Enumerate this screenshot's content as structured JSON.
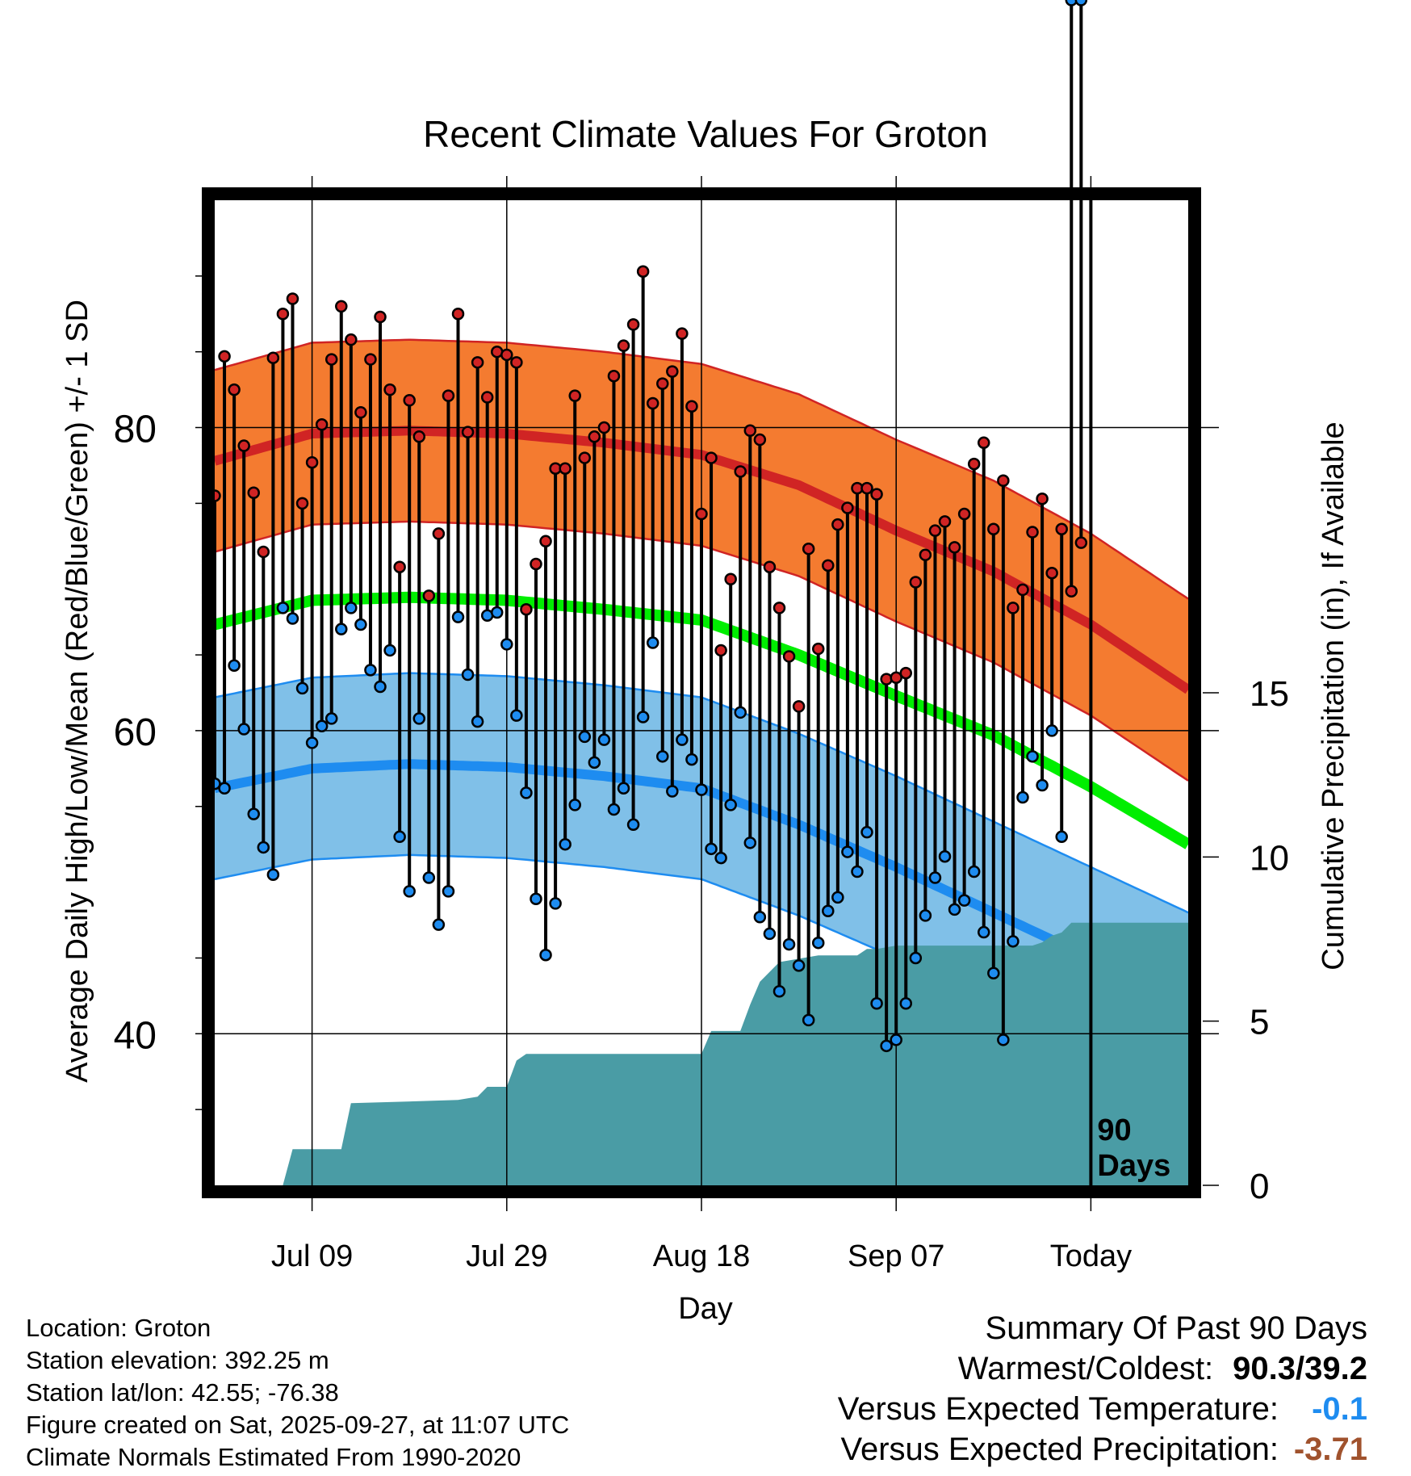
{
  "chart_data": {
    "type": "line",
    "title": "Recent Climate Values For Groton",
    "xlabel": "Day",
    "ylabel": "Average Daily High/Low/Mean (Red/Blue/Green) +/- 1 SD",
    "y2label": "Cumulative Precipitation (in), If Available",
    "x_tick_labels": [
      "Jul 09",
      "Jul 29",
      "Aug 18",
      "Sep 07",
      "Today"
    ],
    "x_tick_days": [
      10,
      30,
      50,
      70,
      90
    ],
    "xlim": [
      0,
      100
    ],
    "ylim": [
      30,
      95
    ],
    "y_ticks": [
      40,
      60,
      80
    ],
    "y2lim": [
      0,
      30
    ],
    "y2_ticks": [
      0,
      5,
      10,
      15
    ],
    "today_marker": "90\nDays",
    "normals": {
      "days": [
        0,
        10,
        20,
        30,
        40,
        50,
        60,
        70,
        80,
        90,
        100
      ],
      "high": [
        77.8,
        79.6,
        79.8,
        79.6,
        79.0,
        78.2,
        76.2,
        73.2,
        70.5,
        67.0,
        62.7
      ],
      "high_sd": 6,
      "mean": [
        67.0,
        68.6,
        68.8,
        68.6,
        68.0,
        67.3,
        65.0,
        62.3,
        59.7,
        56.3,
        52.5
      ],
      "low": [
        56.2,
        57.5,
        57.8,
        57.6,
        57.0,
        56.2,
        53.8,
        51.0,
        48.0,
        45.0,
        42.0
      ],
      "low_sd": 6
    },
    "daily_highs": [
      75.5,
      84.7,
      82.5,
      78.8,
      75.7,
      71.8,
      84.6,
      87.5,
      88.5,
      75.0,
      77.7,
      80.2,
      84.5,
      88.0,
      85.8,
      81.0,
      84.5,
      87.3,
      82.5,
      70.8,
      81.8,
      79.4,
      68.9,
      73.0,
      82.1,
      87.5,
      79.7,
      84.3,
      82.0,
      85.0,
      84.8,
      84.3,
      68.0,
      71.0,
      72.5,
      77.3,
      77.3,
      82.1,
      78.0,
      79.4,
      80.0,
      83.4,
      85.4,
      86.8,
      90.3,
      81.6,
      82.9,
      83.7,
      86.2,
      81.4,
      74.3,
      78.0,
      65.3,
      70.0,
      77.1,
      79.8,
      79.2,
      70.8,
      68.1,
      64.9,
      61.6,
      72.0,
      65.4,
      70.9,
      73.6,
      74.7,
      76.0,
      76.0,
      75.6,
      63.4,
      63.5,
      63.8,
      69.8,
      71.6,
      73.2,
      73.8,
      72.1,
      74.3,
      77.6,
      79.0,
      73.3,
      76.5,
      68.1,
      69.3,
      73.1,
      75.3,
      70.4,
      73.3,
      69.2,
      72.4
    ],
    "daily_lows": [
      56.5,
      56.2,
      64.3,
      60.1,
      54.5,
      52.3,
      50.5,
      68.1,
      67.4,
      62.8,
      59.2,
      60.3,
      60.8,
      66.7,
      68.1,
      67.0,
      64.0,
      62.9,
      65.3,
      53.0,
      49.4,
      60.8,
      50.3,
      47.2,
      49.4,
      67.5,
      63.7,
      60.6,
      67.6,
      67.8,
      65.7,
      61.0,
      55.9,
      48.9,
      45.2,
      48.6,
      52.5,
      55.1,
      59.6,
      57.9,
      59.4,
      54.8,
      56.2,
      53.8,
      60.9,
      65.8,
      58.3,
      56.0,
      59.4,
      58.1,
      56.1,
      52.2,
      51.6,
      55.1,
      61.2,
      52.6,
      47.7,
      46.6,
      42.8,
      45.9,
      44.5,
      40.9,
      46.0,
      48.1,
      49.0,
      52.0,
      50.7,
      53.3,
      42.0,
      39.2,
      39.6,
      42.0,
      45.0,
      47.8,
      50.3,
      51.7,
      48.2,
      48.8,
      50.7,
      46.7,
      44.0,
      39.6,
      46.1,
      55.6,
      58.3,
      56.4,
      60.0,
      53.0
    ],
    "cumulative_precip": {
      "days": [
        0,
        7,
        8,
        13,
        14,
        25,
        27,
        28,
        30,
        31,
        32,
        50,
        51,
        54,
        55,
        56,
        58,
        60,
        62,
        66,
        67,
        68,
        70,
        72,
        84,
        85,
        86,
        87,
        88,
        89,
        90,
        100
      ],
      "values": [
        0,
        0,
        1.1,
        1.1,
        2.5,
        2.6,
        2.7,
        3.0,
        3.0,
        3.8,
        4.0,
        4.0,
        4.7,
        4.7,
        5.5,
        6.2,
        6.8,
        6.9,
        7.0,
        7.0,
        7.2,
        7.2,
        7.3,
        7.3,
        7.3,
        7.4,
        7.6,
        7.7,
        8.0,
        8.0,
        8.0,
        8.0
      ]
    },
    "colors": {
      "high_band": "#f47b30",
      "high_line": "#d02424",
      "low_band": "#80c0e8",
      "low_line": "#1e8cf0",
      "mean_line": "#00ee00",
      "precip": "#4a9ca5"
    }
  },
  "footer": {
    "location": "Location: Groton",
    "elevation": "Station elevation: 392.25 m",
    "latlon": "Station lat/lon: 42.55; -76.38",
    "created": "Figure created on Sat, 2025-09-27, at 11:07 UTC",
    "normals": "Climate Normals Estimated From 1990-2020"
  },
  "summary": {
    "title": "Summary Of Past 90 Days",
    "warm_cold_label": "Warmest/Coldest:",
    "warm_cold_value": "90.3/39.2",
    "temp_label": "Versus Expected Temperature:",
    "temp_value": "-0.1",
    "temp_color": "#1e8cf0",
    "precip_label": "Versus Expected Precipitation:",
    "precip_value": "-3.71",
    "precip_color": "#a0522d"
  }
}
